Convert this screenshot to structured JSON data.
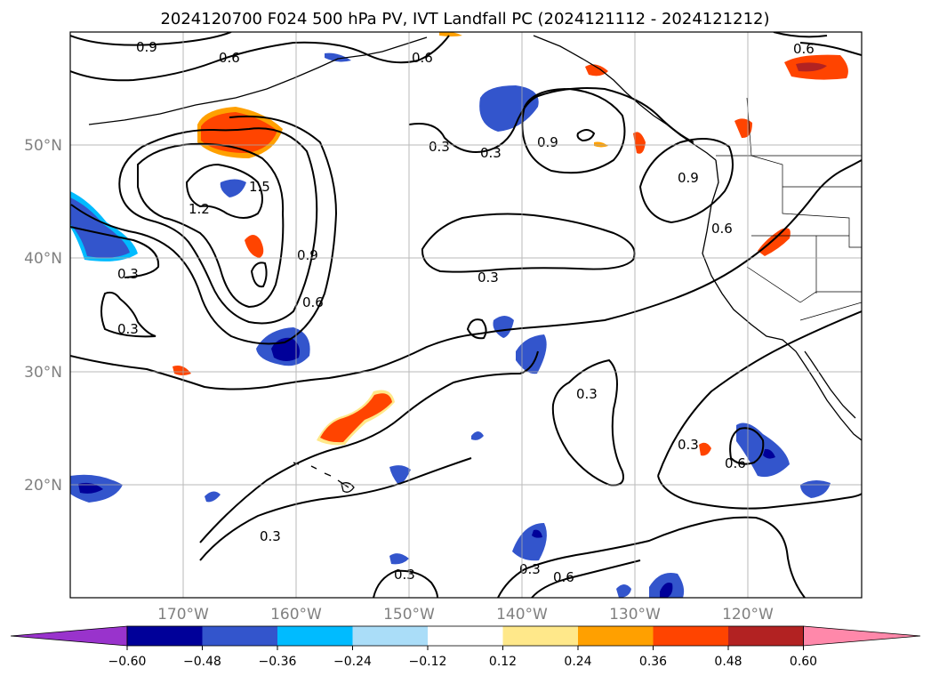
{
  "title": "2024120700 F024 500 hPa PV, IVT Landfall PC (2024121112 - 2024121212)",
  "map": {
    "lat_labels": [
      "50°N",
      "40°N",
      "30°N",
      "20°N"
    ],
    "lon_labels": [
      "170°W",
      "160°W",
      "150°W",
      "140°W",
      "130°W",
      "120°W"
    ],
    "contour_labels": [
      "0.9",
      "0.6",
      "0.6",
      "0.3",
      "0.3",
      "0.9",
      "1.5",
      "1.2",
      "0.9",
      "0.6",
      "0.3",
      "0.3",
      "0.3",
      "0.3",
      "0.9",
      "0.6",
      "0.6",
      "0.3",
      "0.6",
      "0.3",
      "0.3",
      "0.3",
      "0.6"
    ]
  },
  "colorbar": {
    "ticks": [
      "−0.60",
      "−0.48",
      "−0.36",
      "−0.24",
      "−0.12",
      "0.12",
      "0.24",
      "0.36",
      "0.48",
      "0.60"
    ],
    "colors": [
      "#9933cc",
      "#000099",
      "#3355cc",
      "#00bbff",
      "#aaddf8",
      "#ffffff",
      "#ffe88a",
      "#ffa000",
      "#ff4400",
      "#b22222",
      "#ff88aa"
    ]
  },
  "colors": {
    "neg_light": "#aaddf8",
    "neg_cyan": "#00bbff",
    "neg_blue": "#3355cc",
    "neg_dark": "#000099",
    "pos_yellow": "#ffe88a",
    "pos_orange": "#ffa000",
    "pos_red": "#ff4400",
    "pos_darkred": "#b22222"
  }
}
